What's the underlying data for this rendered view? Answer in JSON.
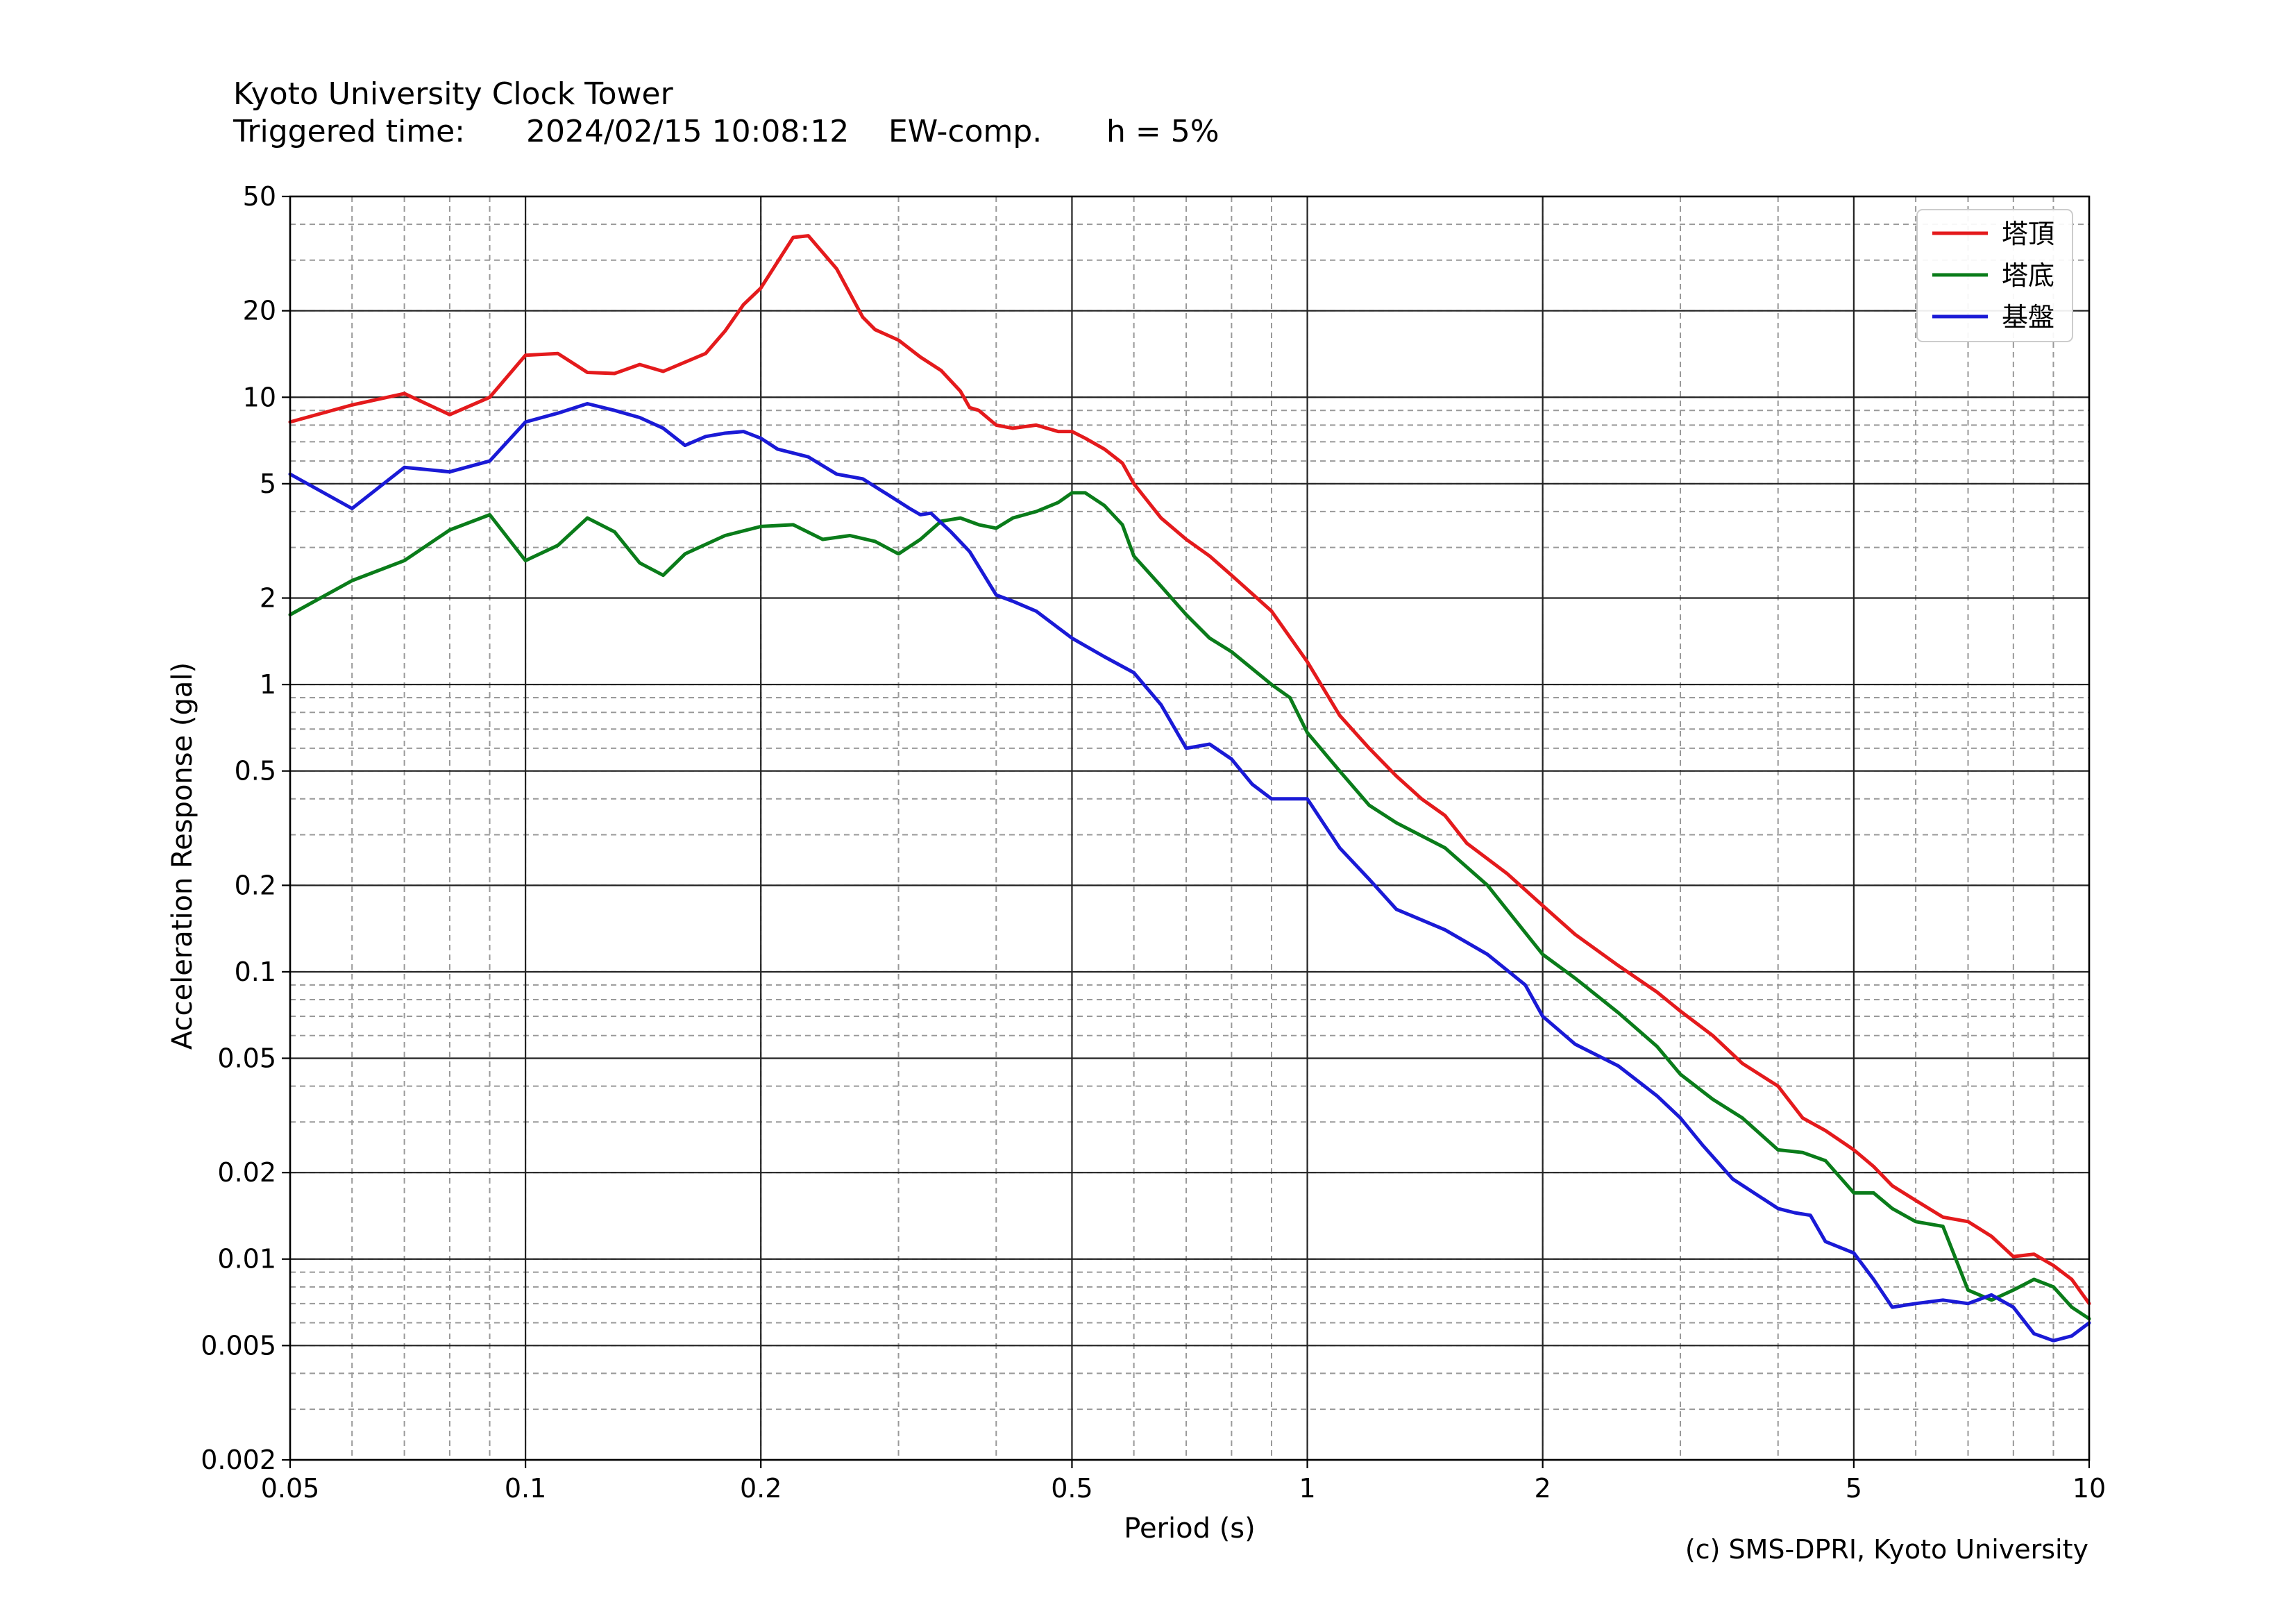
{
  "header": {
    "title": "Kyoto University Clock Tower",
    "triggered_label": "Triggered time:",
    "triggered_time": "2024/02/15 10:08:12",
    "component": "EW-comp.",
    "damping": "h = 5%"
  },
  "footer": {
    "copyright": "(c) SMS-DPRI, Kyoto University"
  },
  "chart_data": {
    "type": "line",
    "xlabel": "Period (s)",
    "ylabel": "Acceleration Response (gal)",
    "xscale": "log",
    "yscale": "log",
    "xlim": [
      0.05,
      10
    ],
    "ylim": [
      0.002,
      50
    ],
    "xticks": [
      0.05,
      0.1,
      0.2,
      0.5,
      1,
      2,
      5,
      10
    ],
    "xtick_labels": [
      "0.05",
      "0.1",
      "0.2",
      "0.5",
      "1",
      "2",
      "5",
      "10"
    ],
    "yticks": [
      0.002,
      0.005,
      0.01,
      0.02,
      0.05,
      0.1,
      0.2,
      0.5,
      1,
      2,
      5,
      10,
      20,
      50
    ],
    "ytick_labels": [
      "0.002",
      "0.005",
      "0.01",
      "0.02",
      "0.05",
      "0.1",
      "0.2",
      "0.5",
      "1",
      "2",
      "5",
      "10",
      "20",
      "50"
    ],
    "grid": "on (major solid, minor dashed)",
    "legend_position": "top-right",
    "series": [
      {
        "name": "塔頂",
        "color": "#e41a1c",
        "points": [
          [
            0.05,
            8.2
          ],
          [
            0.06,
            9.4
          ],
          [
            0.07,
            10.3
          ],
          [
            0.08,
            8.7
          ],
          [
            0.09,
            10
          ],
          [
            0.1,
            14
          ],
          [
            0.11,
            14.2
          ],
          [
            0.12,
            12.2
          ],
          [
            0.13,
            12.1
          ],
          [
            0.14,
            13
          ],
          [
            0.15,
            12.3
          ],
          [
            0.17,
            14.2
          ],
          [
            0.18,
            17
          ],
          [
            0.19,
            21
          ],
          [
            0.2,
            24
          ],
          [
            0.22,
            36
          ],
          [
            0.23,
            36.5
          ],
          [
            0.25,
            28
          ],
          [
            0.26,
            23
          ],
          [
            0.27,
            19
          ],
          [
            0.28,
            17.2
          ],
          [
            0.3,
            15.8
          ],
          [
            0.32,
            13.8
          ],
          [
            0.34,
            12.4
          ],
          [
            0.36,
            10.5
          ],
          [
            0.37,
            9.2
          ],
          [
            0.38,
            9
          ],
          [
            0.4,
            8
          ],
          [
            0.42,
            7.8
          ],
          [
            0.45,
            8
          ],
          [
            0.48,
            7.6
          ],
          [
            0.5,
            7.6
          ],
          [
            0.52,
            7.2
          ],
          [
            0.55,
            6.6
          ],
          [
            0.58,
            5.9
          ],
          [
            0.6,
            5
          ],
          [
            0.65,
            3.8
          ],
          [
            0.7,
            3.2
          ],
          [
            0.75,
            2.8
          ],
          [
            0.8,
            2.4
          ],
          [
            0.9,
            1.8
          ],
          [
            1.0,
            1.2
          ],
          [
            1.1,
            0.78
          ],
          [
            1.2,
            0.6
          ],
          [
            1.3,
            0.48
          ],
          [
            1.4,
            0.4
          ],
          [
            1.5,
            0.35
          ],
          [
            1.6,
            0.28
          ],
          [
            1.8,
            0.22
          ],
          [
            2.0,
            0.17
          ],
          [
            2.2,
            0.135
          ],
          [
            2.5,
            0.105
          ],
          [
            2.8,
            0.085
          ],
          [
            3.0,
            0.073
          ],
          [
            3.3,
            0.06
          ],
          [
            3.6,
            0.048
          ],
          [
            4.0,
            0.04
          ],
          [
            4.3,
            0.031
          ],
          [
            4.6,
            0.028
          ],
          [
            5.0,
            0.024
          ],
          [
            5.3,
            0.021
          ],
          [
            5.6,
            0.018
          ],
          [
            6.0,
            0.016
          ],
          [
            6.5,
            0.014
          ],
          [
            7.0,
            0.0135
          ],
          [
            7.5,
            0.012
          ],
          [
            8.0,
            0.0102
          ],
          [
            8.5,
            0.0104
          ],
          [
            9.0,
            0.0095
          ],
          [
            9.5,
            0.0085
          ],
          [
            10.0,
            0.007
          ]
        ]
      },
      {
        "name": "塔底",
        "color": "#0a7c1a",
        "points": [
          [
            0.05,
            1.75
          ],
          [
            0.06,
            2.3
          ],
          [
            0.07,
            2.7
          ],
          [
            0.08,
            3.45
          ],
          [
            0.09,
            3.9
          ],
          [
            0.1,
            2.7
          ],
          [
            0.11,
            3.05
          ],
          [
            0.12,
            3.8
          ],
          [
            0.13,
            3.4
          ],
          [
            0.14,
            2.65
          ],
          [
            0.15,
            2.4
          ],
          [
            0.16,
            2.85
          ],
          [
            0.18,
            3.3
          ],
          [
            0.2,
            3.55
          ],
          [
            0.22,
            3.6
          ],
          [
            0.24,
            3.2
          ],
          [
            0.26,
            3.3
          ],
          [
            0.28,
            3.15
          ],
          [
            0.3,
            2.85
          ],
          [
            0.32,
            3.2
          ],
          [
            0.34,
            3.7
          ],
          [
            0.36,
            3.8
          ],
          [
            0.38,
            3.6
          ],
          [
            0.4,
            3.5
          ],
          [
            0.42,
            3.8
          ],
          [
            0.45,
            4.0
          ],
          [
            0.48,
            4.3
          ],
          [
            0.5,
            4.65
          ],
          [
            0.52,
            4.65
          ],
          [
            0.55,
            4.2
          ],
          [
            0.58,
            3.6
          ],
          [
            0.6,
            2.8
          ],
          [
            0.65,
            2.2
          ],
          [
            0.7,
            1.75
          ],
          [
            0.75,
            1.45
          ],
          [
            0.8,
            1.3
          ],
          [
            0.9,
            1.0
          ],
          [
            0.95,
            0.9
          ],
          [
            1.0,
            0.68
          ],
          [
            1.1,
            0.5
          ],
          [
            1.2,
            0.38
          ],
          [
            1.3,
            0.33
          ],
          [
            1.5,
            0.27
          ],
          [
            1.7,
            0.2
          ],
          [
            2.0,
            0.115
          ],
          [
            2.2,
            0.095
          ],
          [
            2.5,
            0.072
          ],
          [
            2.8,
            0.055
          ],
          [
            3.0,
            0.044
          ],
          [
            3.3,
            0.036
          ],
          [
            3.6,
            0.031
          ],
          [
            4.0,
            0.024
          ],
          [
            4.3,
            0.0235
          ],
          [
            4.6,
            0.022
          ],
          [
            5.0,
            0.017
          ],
          [
            5.3,
            0.017
          ],
          [
            5.6,
            0.015
          ],
          [
            6.0,
            0.0135
          ],
          [
            6.5,
            0.013
          ],
          [
            7.0,
            0.0078
          ],
          [
            7.5,
            0.0072
          ],
          [
            8.0,
            0.0078
          ],
          [
            8.5,
            0.0085
          ],
          [
            9.0,
            0.008
          ],
          [
            9.5,
            0.0068
          ],
          [
            10.0,
            0.0062
          ]
        ]
      },
      {
        "name": "基盤",
        "color": "#1a1ad6",
        "points": [
          [
            0.05,
            5.4
          ],
          [
            0.06,
            4.1
          ],
          [
            0.07,
            5.7
          ],
          [
            0.08,
            5.5
          ],
          [
            0.09,
            6
          ],
          [
            0.1,
            8.2
          ],
          [
            0.11,
            8.8
          ],
          [
            0.12,
            9.5
          ],
          [
            0.13,
            9
          ],
          [
            0.14,
            8.5
          ],
          [
            0.15,
            7.8
          ],
          [
            0.16,
            6.8
          ],
          [
            0.17,
            7.3
          ],
          [
            0.18,
            7.5
          ],
          [
            0.19,
            7.6
          ],
          [
            0.2,
            7.2
          ],
          [
            0.21,
            6.6
          ],
          [
            0.23,
            6.2
          ],
          [
            0.25,
            5.4
          ],
          [
            0.27,
            5.2
          ],
          [
            0.29,
            4.6
          ],
          [
            0.31,
            4.1
          ],
          [
            0.32,
            3.9
          ],
          [
            0.33,
            3.95
          ],
          [
            0.35,
            3.4
          ],
          [
            0.37,
            2.9
          ],
          [
            0.4,
            2.05
          ],
          [
            0.42,
            1.95
          ],
          [
            0.45,
            1.8
          ],
          [
            0.5,
            1.45
          ],
          [
            0.55,
            1.25
          ],
          [
            0.6,
            1.1
          ],
          [
            0.65,
            0.85
          ],
          [
            0.7,
            0.6
          ],
          [
            0.75,
            0.62
          ],
          [
            0.8,
            0.55
          ],
          [
            0.85,
            0.45
          ],
          [
            0.9,
            0.4
          ],
          [
            1.0,
            0.4
          ],
          [
            1.1,
            0.27
          ],
          [
            1.2,
            0.21
          ],
          [
            1.3,
            0.165
          ],
          [
            1.5,
            0.14
          ],
          [
            1.7,
            0.115
          ],
          [
            1.9,
            0.09
          ],
          [
            2.0,
            0.07
          ],
          [
            2.2,
            0.056
          ],
          [
            2.5,
            0.047
          ],
          [
            2.8,
            0.037
          ],
          [
            3.0,
            0.031
          ],
          [
            3.2,
            0.025
          ],
          [
            3.5,
            0.019
          ],
          [
            4.0,
            0.015
          ],
          [
            4.2,
            0.0145
          ],
          [
            4.4,
            0.0142
          ],
          [
            4.6,
            0.0115
          ],
          [
            5.0,
            0.0105
          ],
          [
            5.3,
            0.0085
          ],
          [
            5.6,
            0.0068
          ],
          [
            6.0,
            0.007
          ],
          [
            6.5,
            0.0072
          ],
          [
            7.0,
            0.007
          ],
          [
            7.5,
            0.0075
          ],
          [
            8.0,
            0.0068
          ],
          [
            8.5,
            0.0055
          ],
          [
            9.0,
            0.0052
          ],
          [
            9.5,
            0.0054
          ],
          [
            10.0,
            0.006
          ]
        ]
      }
    ]
  }
}
